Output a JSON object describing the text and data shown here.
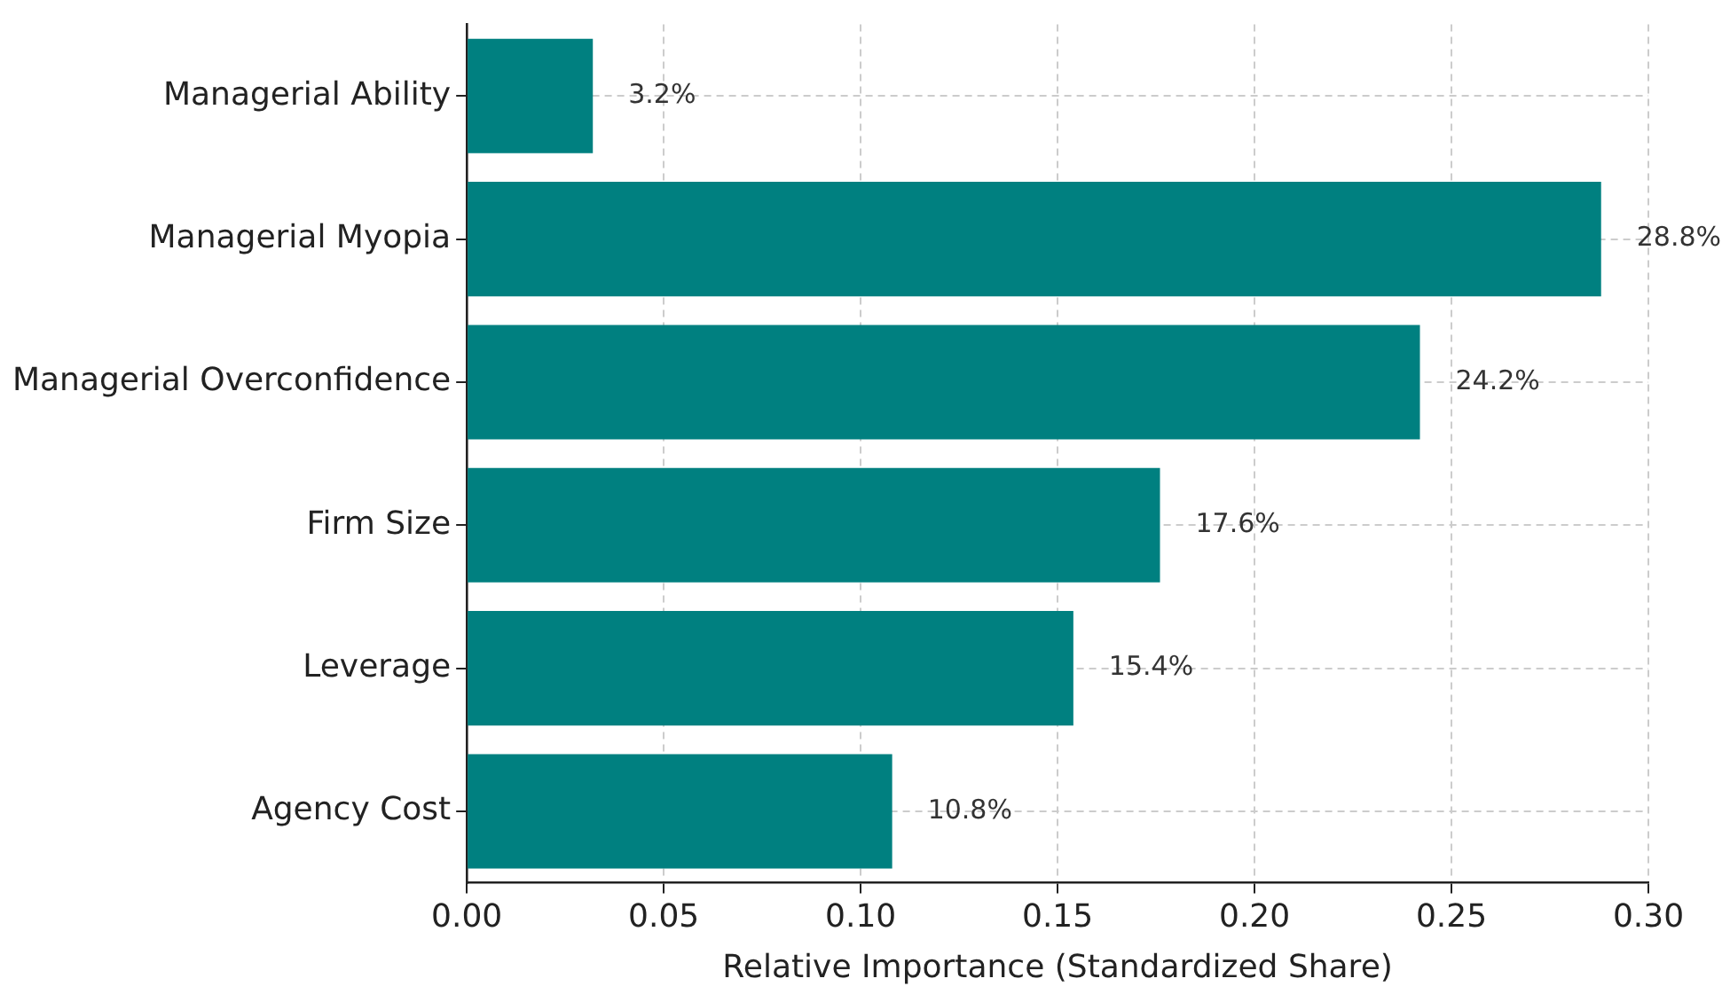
{
  "chart_data": {
    "type": "bar",
    "orientation": "horizontal",
    "xlabel": "Relative Importance (Standardized Share)",
    "categories": [
      "Managerial Ability",
      "Managerial Myopia",
      "Managerial Overconfidence",
      "Firm Size",
      "Leverage",
      "Agency Cost"
    ],
    "values": [
      0.032,
      0.288,
      0.242,
      0.176,
      0.154,
      0.108
    ],
    "value_labels": [
      "3.2%",
      "28.8%",
      "24.2%",
      "17.6%",
      "15.4%",
      "10.8%"
    ],
    "color": "#008080",
    "xlim": [
      0,
      0.3
    ],
    "xticks": [
      {
        "value": 0,
        "label": "0.00"
      },
      {
        "value": 0.05,
        "label": "0.05"
      },
      {
        "value": 0.1,
        "label": "0.10"
      },
      {
        "value": 0.15,
        "label": "0.15"
      },
      {
        "value": 0.2,
        "label": "0.20"
      },
      {
        "value": 0.25,
        "label": "0.25"
      },
      {
        "value": 0.3,
        "label": "0.30"
      }
    ],
    "grid": true,
    "legend": false
  }
}
